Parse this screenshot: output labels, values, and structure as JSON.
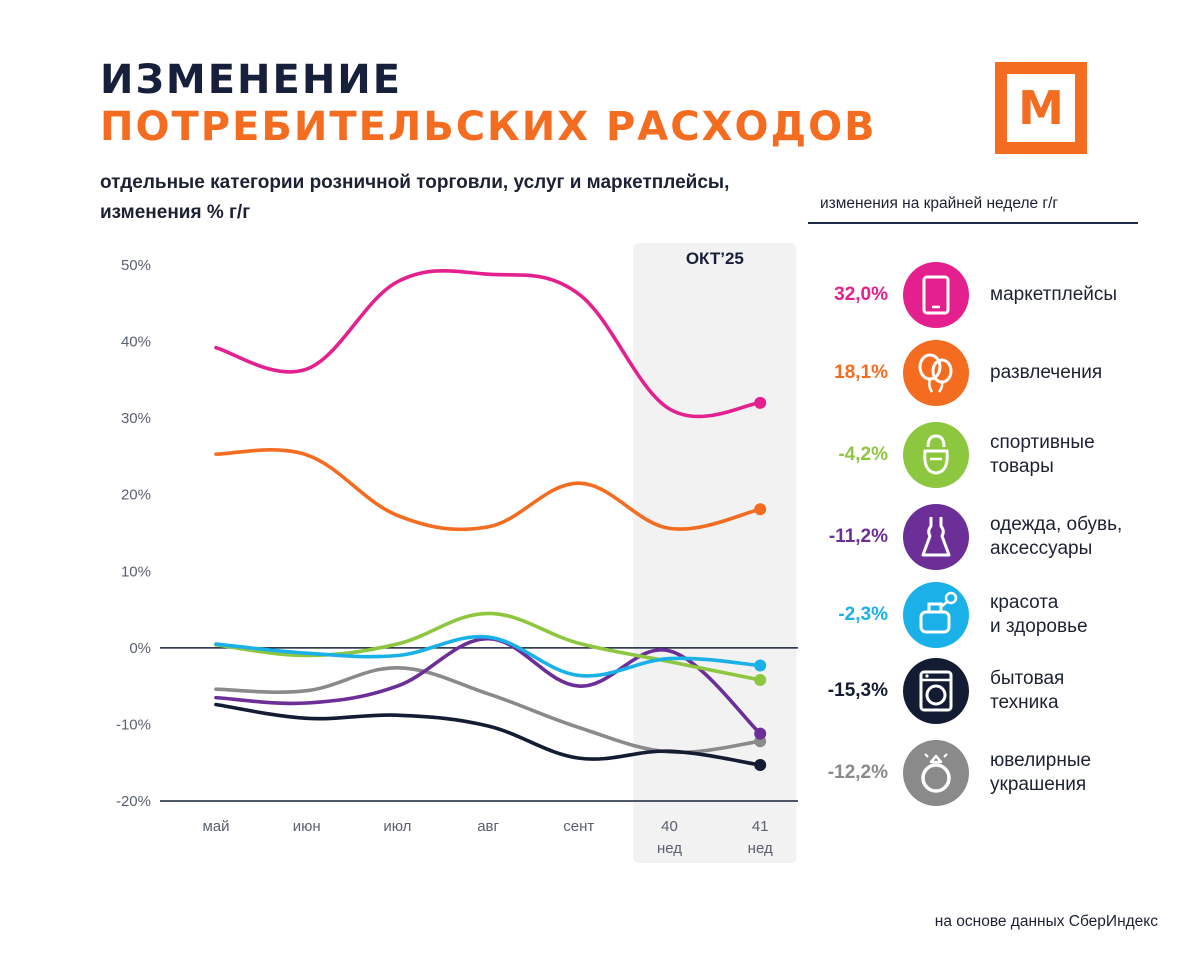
{
  "title_line1": "ИЗМЕНЕНИЕ",
  "title_line2": "ПОТРЕБИТЕЛЬСКИХ РАСХОДОВ",
  "subtitle_line1": "отдельные категории розничной торговли, услуг  и маркетплейсы,",
  "subtitle_line2": "изменения % г/г",
  "logo_letter": "М",
  "weekly_header": "изменения на крайней неделе г/г",
  "source": "на основе данных СберИндекс",
  "colors": {
    "title_dark": "#17203a",
    "brand_orange": "#f46c20",
    "marketplaces": "#e4208f",
    "entertainment": "#f46c20",
    "sports": "#8dc63f",
    "clothing": "#6c2f98",
    "beauty": "#1ab0e8",
    "appliances": "#131c33",
    "jewelry": "#8a8a8a"
  },
  "legend": [
    {
      "key": "marketplaces",
      "value": "32,0%",
      "label": "маркетплейсы",
      "icon": "tablet-icon",
      "color": "#e4208f"
    },
    {
      "key": "entertainment",
      "value": "18,1%",
      "label": "развлечения",
      "icon": "balloons-icon",
      "color": "#f46c20"
    },
    {
      "key": "sports",
      "value": "-4,2%",
      "label": "спортивные\nтовары",
      "icon": "kettlebell-icon",
      "color": "#8dc63f"
    },
    {
      "key": "clothing",
      "value": "-11,2%",
      "label": "одежда, обувь,\nаксессуары",
      "icon": "dress-icon",
      "color": "#6c2f98"
    },
    {
      "key": "beauty",
      "value": "-2,3%",
      "label": "красота\nи здоровье",
      "icon": "perfume-icon",
      "color": "#1ab0e8"
    },
    {
      "key": "appliances",
      "value": "-15,3%",
      "label": "бытовая\nтехника",
      "icon": "washing-machine-icon",
      "color": "#131c33"
    },
    {
      "key": "jewelry",
      "value": "-12,2%",
      "label": "ювелирные\nукрашения",
      "icon": "ring-icon",
      "color": "#8a8a8a"
    }
  ],
  "chart_data": {
    "type": "line",
    "title": "ИЗМЕНЕНИЕ ПОТРЕБИТЕЛЬСКИХ РАСХОДОВ",
    "xlabel": "",
    "ylabel": "изменения % г/г",
    "categories": [
      "май",
      "июн",
      "июл",
      "авг",
      "сент",
      "40",
      "41"
    ],
    "category_sublabels": [
      "",
      "",
      "",
      "",
      "",
      "нед",
      "нед"
    ],
    "highlight_period": {
      "label": "ОКТ’25",
      "from_category": "40",
      "to_category": "41"
    },
    "y_ticks": [
      50,
      40,
      30,
      20,
      10,
      0,
      -10,
      -20
    ],
    "y_tick_labels": [
      "50%",
      "40%",
      "30%",
      "20%",
      "10%",
      "0%",
      "-10%",
      "-20%"
    ],
    "ylim": [
      -20,
      50
    ],
    "series": [
      {
        "key": "marketplaces",
        "name": "маркетплейсы",
        "color": "#e4208f",
        "values": [
          39.2,
          36.4,
          47.8,
          48.8,
          46.2,
          31.2,
          32.0
        ]
      },
      {
        "key": "entertainment",
        "name": "развлечения",
        "color": "#f46c20",
        "values": [
          25.3,
          25.2,
          17.3,
          15.8,
          21.5,
          15.6,
          18.1
        ]
      },
      {
        "key": "sports",
        "name": "спортивные товары",
        "color": "#8dc63f",
        "values": [
          0.4,
          -1.0,
          0.5,
          4.5,
          0.6,
          -1.8,
          -4.2
        ]
      },
      {
        "key": "clothing",
        "name": "одежда, обувь, аксессуары",
        "color": "#6c2f98",
        "values": [
          -6.5,
          -7.2,
          -5.0,
          1.2,
          -5.0,
          -0.4,
          -11.2
        ]
      },
      {
        "key": "beauty",
        "name": "красота и здоровье",
        "color": "#1ab0e8",
        "values": [
          0.5,
          -0.7,
          -1.0,
          1.4,
          -3.6,
          -1.4,
          -2.3
        ]
      },
      {
        "key": "appliances",
        "name": "бытовая техника",
        "color": "#131c33",
        "values": [
          -7.4,
          -9.2,
          -8.8,
          -10.2,
          -14.4,
          -13.5,
          -15.3
        ]
      },
      {
        "key": "jewelry",
        "name": "ювелирные украшения",
        "color": "#8a8a8a",
        "values": [
          -5.4,
          -5.6,
          -2.6,
          -6.0,
          -10.4,
          -13.6,
          -12.2
        ]
      }
    ]
  }
}
